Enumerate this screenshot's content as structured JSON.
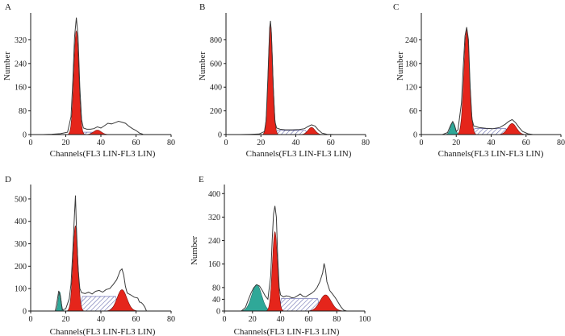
{
  "colors": {
    "axis": "#1a1a1a",
    "outline": "#3a3a3a",
    "g1": "#e5251b",
    "g2m": "#e5251b",
    "sub_g1": "#2fa898",
    "s_phase": "#5b5ea6",
    "fit": "#8c8c8c"
  },
  "chart_data": [
    {
      "type": "histogram",
      "panel": "A",
      "xlabel": "Channels(FL3 LIN-FL3 LIN)",
      "ylabel": "Number",
      "xlim": [
        0,
        80
      ],
      "xticks": [
        0,
        20,
        40,
        60,
        80
      ],
      "ylim": [
        0,
        400
      ],
      "yticks": [
        0,
        80,
        160,
        240,
        320
      ],
      "sub_g1": null,
      "g1": {
        "mean": 26,
        "sd": 1.4,
        "height": 350
      },
      "g2m": {
        "mean": 38,
        "sd": 2.2,
        "height": 15
      },
      "s_phase": {
        "from": 28,
        "to": 40,
        "level": 8
      },
      "outline": [
        [
          7,
          0
        ],
        [
          12,
          1
        ],
        [
          17,
          3
        ],
        [
          21,
          8
        ],
        [
          23,
          60
        ],
        [
          24,
          180
        ],
        [
          25,
          330
        ],
        [
          26,
          395
        ],
        [
          27,
          330
        ],
        [
          28,
          160
        ],
        [
          29,
          50
        ],
        [
          30,
          22
        ],
        [
          32,
          18
        ],
        [
          34,
          18
        ],
        [
          36,
          20
        ],
        [
          38,
          26
        ],
        [
          40,
          22
        ],
        [
          42,
          30
        ],
        [
          44,
          38
        ],
        [
          46,
          36
        ],
        [
          48,
          40
        ],
        [
          50,
          45
        ],
        [
          52,
          42
        ],
        [
          54,
          38
        ],
        [
          56,
          28
        ],
        [
          58,
          20
        ],
        [
          60,
          14
        ],
        [
          62,
          5
        ],
        [
          64,
          1
        ]
      ]
    },
    {
      "type": "histogram",
      "panel": "B",
      "xlabel": "Channels(FL3 LIN-FL3 LIN)",
      "ylabel": "Number",
      "xlim": [
        0,
        80
      ],
      "xticks": [
        0,
        20,
        40,
        60,
        80
      ],
      "ylim": [
        0,
        1000
      ],
      "yticks": [
        0,
        200,
        400,
        600,
        800
      ],
      "sub_g1": null,
      "g1": {
        "mean": 25.5,
        "sd": 1.3,
        "height": 930
      },
      "g2m": {
        "mean": 49,
        "sd": 2.0,
        "height": 60
      },
      "s_phase": {
        "from": 28,
        "to": 47,
        "level": 35
      },
      "outline": [
        [
          8,
          0
        ],
        [
          14,
          2
        ],
        [
          19,
          5
        ],
        [
          22,
          25
        ],
        [
          23,
          120
        ],
        [
          24,
          480
        ],
        [
          25,
          900
        ],
        [
          25.5,
          960
        ],
        [
          26,
          860
        ],
        [
          27,
          420
        ],
        [
          28,
          110
        ],
        [
          29,
          55
        ],
        [
          31,
          45
        ],
        [
          34,
          40
        ],
        [
          38,
          40
        ],
        [
          42,
          42
        ],
        [
          45,
          50
        ],
        [
          47,
          68
        ],
        [
          49,
          82
        ],
        [
          51,
          72
        ],
        [
          53,
          38
        ],
        [
          55,
          12
        ],
        [
          58,
          2
        ],
        [
          62,
          0
        ]
      ]
    },
    {
      "type": "histogram",
      "panel": "C",
      "xlabel": "Channels(FL3 LIN-FL3 LIN)",
      "ylabel": "Number",
      "xlim": [
        0,
        80
      ],
      "xticks": [
        0,
        20,
        40,
        60,
        80
      ],
      "ylim": [
        0,
        300
      ],
      "yticks": [
        0,
        60,
        120,
        180,
        240
      ],
      "sub_g1": {
        "mean": 18,
        "sd": 1.3,
        "height": 30
      },
      "g1": {
        "mean": 26,
        "sd": 1.6,
        "height": 265
      },
      "g2m": {
        "mean": 52,
        "sd": 2.5,
        "height": 28
      },
      "s_phase": {
        "from": 29,
        "to": 50,
        "level": 15
      },
      "outline": [
        [
          12,
          0
        ],
        [
          15,
          5
        ],
        [
          17,
          26
        ],
        [
          18,
          33
        ],
        [
          19,
          24
        ],
        [
          20,
          8
        ],
        [
          21,
          12
        ],
        [
          23,
          80
        ],
        [
          24,
          170
        ],
        [
          25,
          250
        ],
        [
          26,
          272
        ],
        [
          27,
          240
        ],
        [
          28,
          120
        ],
        [
          29,
          40
        ],
        [
          30,
          22
        ],
        [
          33,
          18
        ],
        [
          37,
          16
        ],
        [
          41,
          15
        ],
        [
          45,
          18
        ],
        [
          48,
          26
        ],
        [
          50,
          33
        ],
        [
          52,
          38
        ],
        [
          54,
          30
        ],
        [
          56,
          18
        ],
        [
          58,
          8
        ],
        [
          61,
          2
        ],
        [
          64,
          0
        ]
      ]
    },
    {
      "type": "histogram",
      "panel": "D",
      "xlabel": "Channels(FL3 LIN-FL3 LIN)",
      "ylabel": "Number",
      "xlim": [
        0,
        80
      ],
      "xticks": [
        0,
        20,
        40,
        60,
        80
      ],
      "ylim": [
        0,
        550
      ],
      "yticks": [
        0,
        100,
        200,
        300,
        400,
        500
      ],
      "sub_g1": {
        "mean": 16.5,
        "sd": 0.8,
        "height": 85
      },
      "g1": {
        "mean": 25.5,
        "sd": 1.4,
        "height": 380
      },
      "g2m": {
        "mean": 52,
        "sd": 2.8,
        "height": 95
      },
      "s_phase": {
        "from": 28,
        "to": 50,
        "level": 65
      },
      "outline": [
        [
          14,
          0
        ],
        [
          15,
          40
        ],
        [
          16,
          90
        ],
        [
          17,
          60
        ],
        [
          18,
          5
        ],
        [
          20,
          10
        ],
        [
          22,
          55
        ],
        [
          23,
          120
        ],
        [
          24,
          270
        ],
        [
          25,
          440
        ],
        [
          25.5,
          515
        ],
        [
          26,
          380
        ],
        [
          27,
          190
        ],
        [
          28,
          100
        ],
        [
          29,
          82
        ],
        [
          31,
          78
        ],
        [
          33,
          84
        ],
        [
          35,
          76
        ],
        [
          37,
          88
        ],
        [
          39,
          92
        ],
        [
          41,
          84
        ],
        [
          43,
          96
        ],
        [
          45,
          100
        ],
        [
          47,
          118
        ],
        [
          49,
          140
        ],
        [
          50,
          160
        ],
        [
          51,
          180
        ],
        [
          52,
          188
        ],
        [
          53,
          160
        ],
        [
          54,
          110
        ],
        [
          55,
          80
        ],
        [
          57,
          72
        ],
        [
          59,
          62
        ],
        [
          61,
          58
        ],
        [
          62,
          40
        ],
        [
          63,
          38
        ],
        [
          64,
          30
        ],
        [
          65,
          18
        ],
        [
          66,
          0
        ]
      ]
    },
    {
      "type": "histogram",
      "panel": "E",
      "xlabel": "Channels(FL3 LIN-FL3 LIN)",
      "ylabel": "Number",
      "xlim": [
        0,
        100
      ],
      "xticks": [
        0,
        20,
        40,
        60,
        80,
        100
      ],
      "ylim": [
        0,
        420
      ],
      "yticks": [
        0,
        40,
        80,
        160,
        240,
        320,
        400
      ],
      "sub_g1": {
        "mean": 23,
        "sd": 3.5,
        "height": 90
      },
      "g1": {
        "mean": 36,
        "sd": 1.8,
        "height": 270
      },
      "g2m": {
        "mean": 72,
        "sd": 4.0,
        "height": 55
      },
      "s_phase": {
        "from": 39,
        "to": 68,
        "level": 42
      },
      "outline": [
        [
          12,
          0
        ],
        [
          15,
          12
        ],
        [
          17,
          38
        ],
        [
          19,
          62
        ],
        [
          21,
          80
        ],
        [
          23,
          90
        ],
        [
          25,
          85
        ],
        [
          27,
          70
        ],
        [
          29,
          52
        ],
        [
          31,
          40
        ],
        [
          33,
          120
        ],
        [
          34,
          240
        ],
        [
          35,
          330
        ],
        [
          36,
          358
        ],
        [
          37,
          320
        ],
        [
          38,
          180
        ],
        [
          39,
          80
        ],
        [
          40,
          55
        ],
        [
          42,
          48
        ],
        [
          44,
          52
        ],
        [
          46,
          50
        ],
        [
          48,
          45
        ],
        [
          50,
          46
        ],
        [
          52,
          52
        ],
        [
          54,
          58
        ],
        [
          56,
          50
        ],
        [
          58,
          48
        ],
        [
          60,
          55
        ],
        [
          62,
          60
        ],
        [
          64,
          68
        ],
        [
          66,
          80
        ],
        [
          68,
          100
        ],
        [
          70,
          130
        ],
        [
          71,
          162
        ],
        [
          72,
          140
        ],
        [
          73,
          100
        ],
        [
          75,
          70
        ],
        [
          77,
          58
        ],
        [
          79,
          45
        ],
        [
          81,
          30
        ],
        [
          83,
          14
        ],
        [
          85,
          3
        ],
        [
          87,
          0
        ]
      ]
    }
  ]
}
